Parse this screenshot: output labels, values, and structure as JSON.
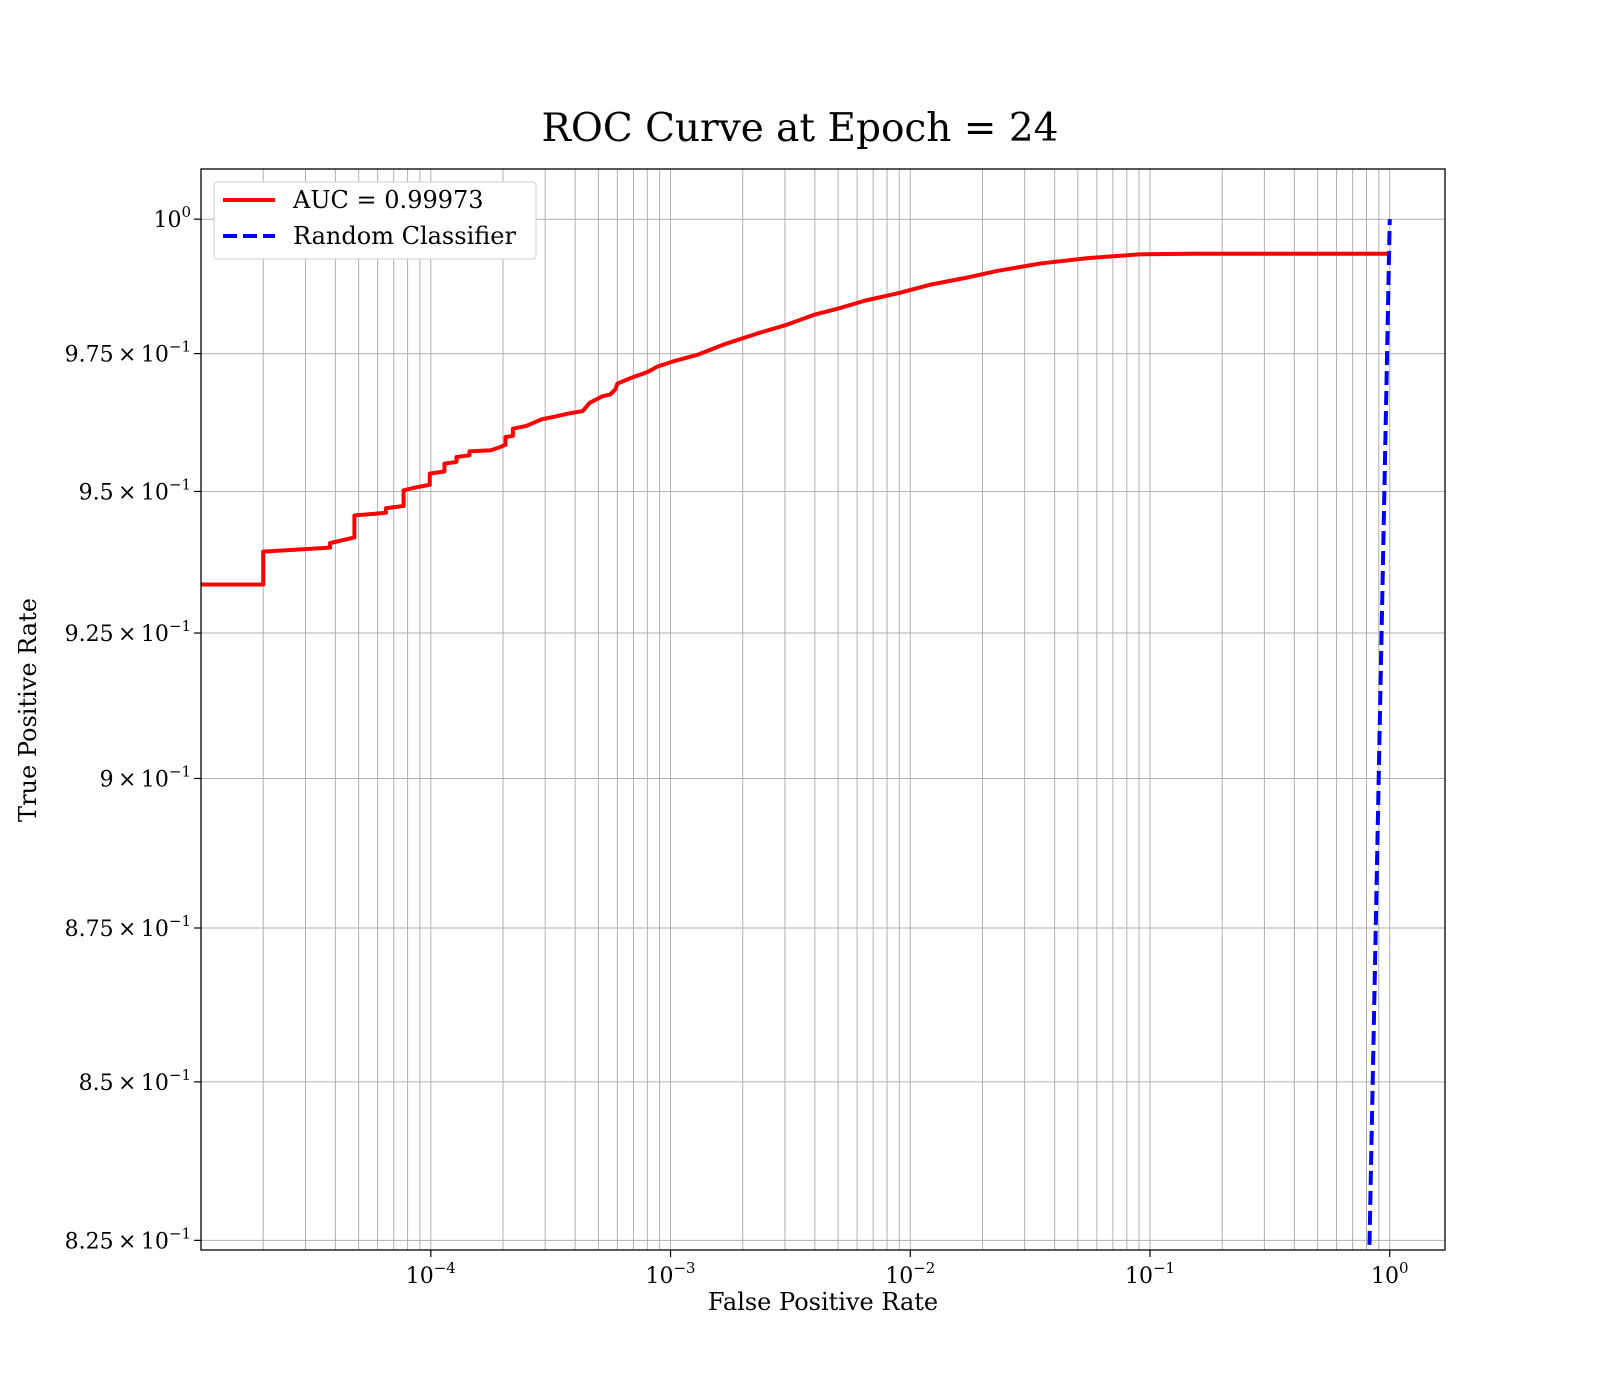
{
  "chart_data": {
    "type": "line",
    "title": "ROC Curve at Epoch = 24",
    "xlabel": "False Positive Rate",
    "ylabel": "True Positive Rate",
    "xscale": "log",
    "yscale": "log",
    "xlim": [
      1.1e-05,
      1.7
    ],
    "ylim": [
      0.8235,
      1.0095
    ],
    "grid": "both, major and minor",
    "legend_position": "top-left",
    "x_ticks": [
      {
        "base": "10",
        "exp": "−4",
        "value": 0.0001
      },
      {
        "base": "10",
        "exp": "−3",
        "value": 0.001
      },
      {
        "base": "10",
        "exp": "−2",
        "value": 0.01
      },
      {
        "base": "10",
        "exp": "−1",
        "value": 0.1
      },
      {
        "base": "10",
        "exp": "0",
        "value": 1
      }
    ],
    "y_ticks": [
      {
        "mant": "",
        "base": "10",
        "exp": "0",
        "value": 1.0
      },
      {
        "mant": "9.75",
        "base": "10",
        "exp": "−1",
        "value": 0.975
      },
      {
        "mant": "9.5",
        "base": "10",
        "exp": "−1",
        "value": 0.95
      },
      {
        "mant": "9.25",
        "base": "10",
        "exp": "−1",
        "value": 0.925
      },
      {
        "mant": "9",
        "base": "10",
        "exp": "−1",
        "value": 0.9
      },
      {
        "mant": "8.75",
        "base": "10",
        "exp": "−1",
        "value": 0.875
      },
      {
        "mant": "8.5",
        "base": "10",
        "exp": "−1",
        "value": 0.85
      },
      {
        "mant": "8.25",
        "base": "10",
        "exp": "−1",
        "value": 0.825
      }
    ],
    "series": [
      {
        "name": "AUC = 0.99973",
        "color": "#ff0000",
        "style": "solid",
        "points": [
          [
            1.1e-05,
            0.9335
          ],
          [
            2e-05,
            0.9335
          ],
          [
            2e-05,
            0.9393
          ],
          [
            3.8e-05,
            0.94
          ],
          [
            3.8e-05,
            0.9408
          ],
          [
            4.8e-05,
            0.9418
          ],
          [
            4.8e-05,
            0.9457
          ],
          [
            6.5e-05,
            0.9462
          ],
          [
            6.5e-05,
            0.947
          ],
          [
            7.7e-05,
            0.9474
          ],
          [
            7.7e-05,
            0.9502
          ],
          [
            8.6e-05,
            0.9507
          ],
          [
            9.9e-05,
            0.9512
          ],
          [
            9.9e-05,
            0.9532
          ],
          [
            0.000114,
            0.9536
          ],
          [
            0.000114,
            0.955
          ],
          [
            0.000128,
            0.9553
          ],
          [
            0.000128,
            0.9562
          ],
          [
            0.000145,
            0.9565
          ],
          [
            0.000145,
            0.9572
          ],
          [
            0.000178,
            0.9574
          ],
          [
            0.000195,
            0.958
          ],
          [
            0.000205,
            0.9584
          ],
          [
            0.000205,
            0.9598
          ],
          [
            0.00022,
            0.96
          ],
          [
            0.00022,
            0.9613
          ],
          [
            0.00025,
            0.9618
          ],
          [
            0.00029,
            0.963
          ],
          [
            0.00033,
            0.9635
          ],
          [
            0.00037,
            0.964
          ],
          [
            0.00043,
            0.9645
          ],
          [
            0.00046,
            0.966
          ],
          [
            0.00052,
            0.9672
          ],
          [
            0.00056,
            0.9675
          ],
          [
            0.00059,
            0.9685
          ],
          [
            0.0006,
            0.9695
          ],
          [
            0.00068,
            0.9705
          ],
          [
            0.0008,
            0.9716
          ],
          [
            0.00088,
            0.9726
          ],
          [
            0.00105,
            0.9737
          ],
          [
            0.0013,
            0.9748
          ],
          [
            0.0017,
            0.9768
          ],
          [
            0.0023,
            0.9787
          ],
          [
            0.003,
            0.9802
          ],
          [
            0.004,
            0.9822
          ],
          [
            0.005,
            0.9833
          ],
          [
            0.0065,
            0.9848
          ],
          [
            0.009,
            0.9862
          ],
          [
            0.012,
            0.9877
          ],
          [
            0.017,
            0.989
          ],
          [
            0.023,
            0.9903
          ],
          [
            0.035,
            0.9917
          ],
          [
            0.055,
            0.9927
          ],
          [
            0.09,
            0.9934
          ],
          [
            0.15,
            0.9935
          ],
          [
            1.0,
            0.9935
          ]
        ]
      },
      {
        "name": "Random Classifier",
        "color": "#0000ff",
        "style": "dashed",
        "points": [
          [
            0.82,
            0.8212
          ],
          [
            1.0,
            1.0
          ]
        ]
      }
    ]
  }
}
